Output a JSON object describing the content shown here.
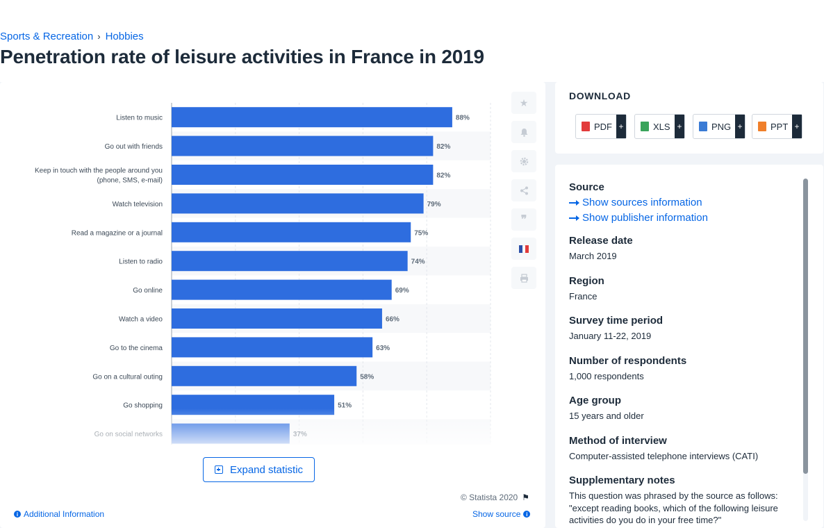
{
  "breadcrumb": [
    {
      "label": "Sports & Recreation",
      "sep": "›"
    },
    {
      "label": "Hobbies",
      "sep": ""
    }
  ],
  "title": "Penetration rate of leisure activities in France in 2019",
  "chart_data": {
    "type": "bar",
    "orientation": "horizontal",
    "categories": [
      [
        "Listen to music"
      ],
      [
        "Go out with friends"
      ],
      [
        "Keep in touch with the people around you",
        "(phone, SMS, e-mail)"
      ],
      [
        "Watch television"
      ],
      [
        "Read a magazine or a journal"
      ],
      [
        "Listen to radio"
      ],
      [
        "Go online"
      ],
      [
        "Watch a video"
      ],
      [
        "Go to the cinema"
      ],
      [
        "Go on a cultural outing"
      ],
      [
        "Go shopping"
      ],
      [
        "Go on social networks"
      ]
    ],
    "values": [
      88,
      82,
      82,
      79,
      75,
      74,
      69,
      66,
      63,
      58,
      51,
      37
    ],
    "value_labels": [
      "88%",
      "82%",
      "82%",
      "79%",
      "75%",
      "74%",
      "69%",
      "66%",
      "63%",
      "58%",
      "51%",
      "37%"
    ],
    "xlim": [
      0,
      100
    ],
    "x_grid": [
      0,
      20,
      40,
      60,
      80,
      100
    ],
    "bar_color": "#2e6ddf",
    "grid": true,
    "title": "",
    "xlabel": "",
    "ylabel": ""
  },
  "expand": {
    "label": "Expand statistic"
  },
  "footer": {
    "copyright": "© Statista 2020",
    "additional_info": "Additional Information",
    "show_source": "Show source"
  },
  "side_icons": [
    "star-icon",
    "bell-icon",
    "gear-icon",
    "share-icon",
    "quote-icon",
    "france-flag-icon",
    "print-icon"
  ],
  "download": {
    "title": "DOWNLOAD",
    "buttons": [
      {
        "label": "PDF",
        "color": "#e23b3b"
      },
      {
        "label": "XLS",
        "color": "#3aa45b"
      },
      {
        "label": "PNG",
        "color": "#3a7bd5"
      },
      {
        "label": "PPT",
        "color": "#f07f2a"
      }
    ],
    "plus": "+"
  },
  "info": {
    "source_heading": "Source",
    "show_sources": "Show sources information",
    "show_publisher": "Show publisher information",
    "items": [
      {
        "heading": "Release date",
        "value": "March 2019"
      },
      {
        "heading": "Region",
        "value": "France"
      },
      {
        "heading": "Survey time period",
        "value": "January 11-22, 2019"
      },
      {
        "heading": "Number of respondents",
        "value": "1,000 respondents"
      },
      {
        "heading": "Age group",
        "value": "15 years and older"
      },
      {
        "heading": "Method of interview",
        "value": "Computer-assisted telephone interviews (CATI)"
      },
      {
        "heading": "Supplementary notes",
        "value": "This question was phrased by the source as follows: \"except reading books, which of the following leisure activities do you do in your free time?\""
      }
    ]
  }
}
